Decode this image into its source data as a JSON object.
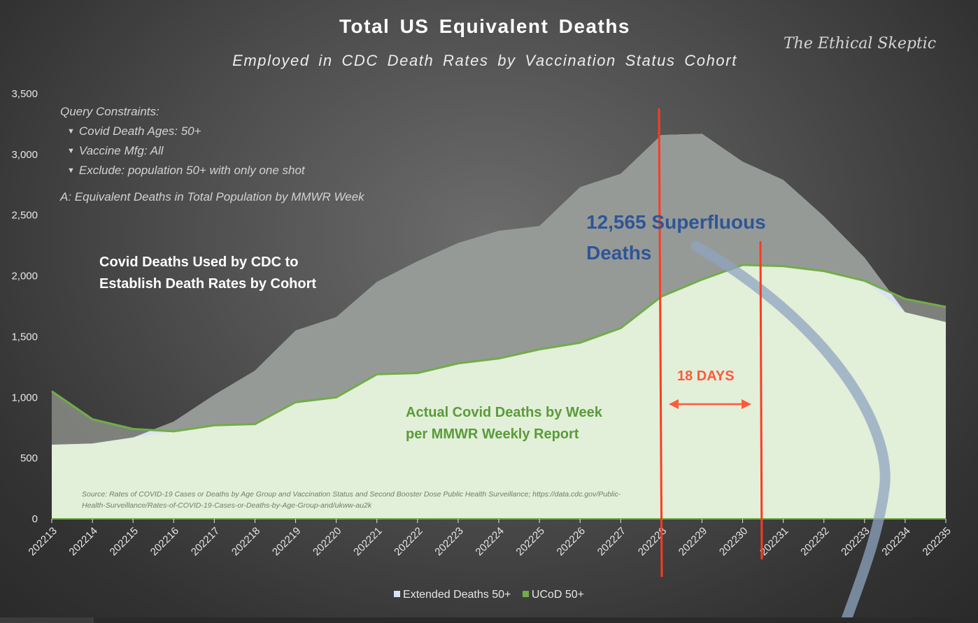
{
  "chart_data": {
    "type": "area",
    "title": "Total US Equivalent Deaths",
    "subtitle": "Employed in CDC Death Rates by Vaccination Status Cohort",
    "categories": [
      "202213",
      "202214",
      "202215",
      "202216",
      "202217",
      "202218",
      "202219",
      "202220",
      "202221",
      "202222",
      "202223",
      "202224",
      "202225",
      "202226",
      "202227",
      "202228",
      "202229",
      "202230",
      "202231",
      "202232",
      "202233",
      "202234",
      "202235"
    ],
    "series": [
      {
        "name": "Extended Deaths 50+",
        "color": "#dae3f3",
        "values": [
          610,
          620,
          670,
          800,
          1020,
          1220,
          1550,
          1660,
          1950,
          2120,
          2270,
          2370,
          2410,
          2730,
          2840,
          3160,
          3170,
          2940,
          2790,
          2490,
          2150,
          1700,
          1620
        ]
      },
      {
        "name": "UCoD 50+",
        "color": "#e2efd9",
        "line_color": "#70ad47",
        "values": [
          1050,
          820,
          740,
          720,
          770,
          780,
          960,
          1000,
          1190,
          1200,
          1280,
          1320,
          1395,
          1450,
          1570,
          1830,
          1970,
          2090,
          2080,
          2040,
          1960,
          1810,
          1745
        ]
      }
    ],
    "ylim": [
      0,
      3500
    ],
    "yticks": [
      0,
      500,
      1000,
      1500,
      2000,
      2500,
      3000,
      3500
    ],
    "ytick_labels": [
      "0",
      "500",
      "1,000",
      "1,500",
      "2,000",
      "2,500",
      "3,000",
      "3,500"
    ],
    "xlabel": "",
    "ylabel": "",
    "legend_position": "bottom",
    "markers": [
      {
        "at_index": 15,
        "label": "vertical line",
        "color": "#ff3b1f"
      },
      {
        "at_index": 17.4,
        "label": "vertical line",
        "color": "#ff3b1f"
      }
    ]
  },
  "annotations": {
    "watermark": "The Ethical Skeptic",
    "query_title": "Query Constraints:",
    "query_items": [
      "Covid Death Ages: 50+",
      "Vaccine Mfg: All",
      "Exclude: population 50+ with only one shot"
    ],
    "note_a": "A: Equivalent Deaths in Total Population by MMWR Week",
    "cdc_label_1": "Covid Deaths Used by CDC to",
    "cdc_label_2": "Establish Death Rates by Cohort",
    "superfluous_1": "12,565 Superfluous",
    "superfluous_2": "Deaths",
    "days": "18 DAYS",
    "actual_1": "Actual Covid Deaths by Week",
    "actual_2": "per MMWR Weekly Report",
    "source_1": "Source: Rates of COVID-19 Cases or Deaths by Age Group and Vaccination Status and Second Booster Dose Public Health Surveillance; https://data.cdc.gov/Public-",
    "source_2": "Health-Surveillance/Rates-of-COVID-19-Cases-or-Deaths-by-Age-Group-and/ukww-au2k"
  },
  "legend": {
    "items": [
      {
        "label": "Extended Deaths 50+",
        "color": "#dae3f3"
      },
      {
        "label": "UCoD 50+",
        "color": "#70ad47"
      }
    ]
  }
}
